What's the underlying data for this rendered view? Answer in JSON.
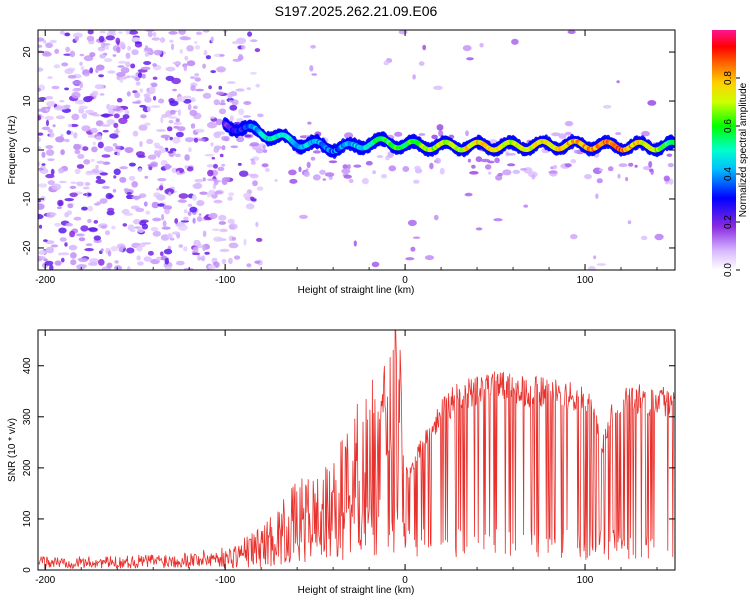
{
  "title": "S197.2025.262.21.09.E06",
  "colors": {
    "snr_line": "#e8302c",
    "axis": "#000000",
    "background": "#ffffff"
  },
  "chart_data": [
    {
      "type": "heatmap",
      "name": "spectrogram",
      "xlabel": "Height of straight line (km)",
      "ylabel": "Frequency (Hz)",
      "xlim": [
        -204,
        150
      ],
      "ylim": [
        -24.5,
        24.5
      ],
      "xticks": [
        -200,
        -100,
        0,
        100
      ],
      "yticks": [
        -20,
        -10,
        0,
        10,
        20
      ],
      "colorbar": {
        "label": "Normalized spectral amplitude",
        "range": [
          0,
          1
        ],
        "ticks": [
          0.0,
          0.2,
          0.4,
          0.6,
          0.8
        ],
        "tick_labels": [
          "0.0",
          "0.2",
          "0.4",
          "0.6",
          "0.8"
        ],
        "colormap": [
          "#ffffff",
          "#d8b8ff",
          "#8a2be2",
          "#0000ff",
          "#00ffff",
          "#00ff00",
          "#ffff00",
          "#ff8000",
          "#ff0000",
          "#ff1493"
        ]
      },
      "signal_track": {
        "description_values_x": [
          -100,
          -90,
          -80,
          -70,
          -60,
          -50,
          -40,
          -30,
          -20,
          -10,
          0,
          20,
          40,
          60,
          80,
          100,
          120,
          150
        ],
        "frequency_hz": [
          5,
          4.5,
          3.5,
          2.5,
          1.5,
          1.0,
          0.5,
          0.5,
          1.5,
          1.5,
          1.0,
          0.8,
          0.8,
          0.8,
          1.0,
          1.0,
          0.8,
          0.8
        ],
        "amplitude": [
          0.2,
          0.3,
          0.45,
          0.5,
          0.45,
          0.4,
          0.35,
          0.4,
          0.5,
          0.6,
          0.6,
          0.7,
          0.75,
          0.7,
          0.75,
          0.8,
          0.85,
          0.55
        ]
      }
    },
    {
      "type": "line",
      "name": "snr",
      "xlabel": "Height of straight line (km)",
      "ylabel": "SNR (10 * v/v)",
      "xlim": [
        -204,
        150
      ],
      "ylim": [
        0,
        470
      ],
      "xticks": [
        -200,
        -100,
        0,
        100
      ],
      "yticks": [
        0,
        100,
        200,
        300,
        400
      ],
      "series": [
        {
          "name": "SNR",
          "x": [
            -204,
            -180,
            -160,
            -140,
            -120,
            -100,
            -90,
            -80,
            -70,
            -60,
            -50,
            -40,
            -30,
            -20,
            -10,
            -6,
            -5,
            0,
            10,
            20,
            30,
            40,
            50,
            60,
            70,
            80,
            90,
            100,
            105,
            110,
            115,
            120,
            130,
            140,
            150
          ],
          "values": [
            15,
            15,
            15,
            18,
            20,
            25,
            40,
            55,
            80,
            110,
            120,
            130,
            200,
            230,
            260,
            300,
            470,
            190,
            260,
            320,
            350,
            360,
            370,
            365,
            360,
            355,
            350,
            340,
            310,
            250,
            320,
            340,
            345,
            340,
            345
          ]
        }
      ]
    }
  ]
}
